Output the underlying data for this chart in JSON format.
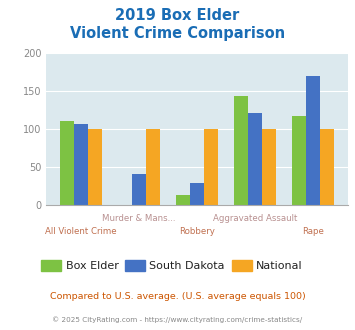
{
  "title_line1": "2019 Box Elder",
  "title_line2": "Violent Crime Comparison",
  "categories": [
    "All Violent Crime",
    "Murder & Mans...",
    "Robbery",
    "Aggravated Assault",
    "Rape"
  ],
  "box_elder": [
    110,
    0,
    13,
    143,
    117
  ],
  "south_dakota": [
    106,
    40,
    28,
    121,
    170
  ],
  "national": [
    100,
    100,
    100,
    100,
    100
  ],
  "colors": {
    "box_elder": "#7dc243",
    "south_dakota": "#4472c4",
    "national": "#f5a623"
  },
  "ylim": [
    0,
    200
  ],
  "yticks": [
    0,
    50,
    100,
    150,
    200
  ],
  "bg_color": "#dce9ee",
  "title_color": "#1a6db5",
  "category_color_top": "#b89090",
  "category_color_bot": "#c07050",
  "footer_text": "Compared to U.S. average. (U.S. average equals 100)",
  "copyright_text": "© 2025 CityRating.com - https://www.cityrating.com/crime-statistics/",
  "legend_labels": [
    "Box Elder",
    "South Dakota",
    "National"
  ],
  "ytick_color": "#888888",
  "grid_color": "#ffffff",
  "spine_color": "#aaaaaa"
}
